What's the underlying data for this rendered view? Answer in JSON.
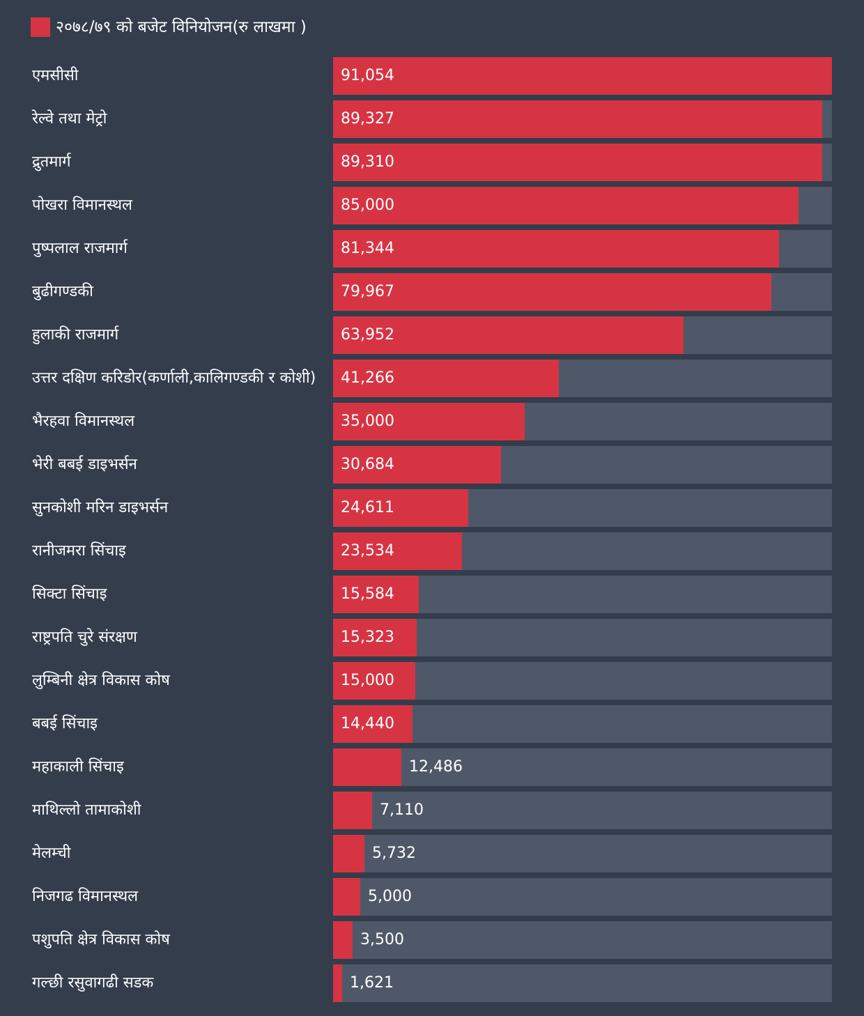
{
  "chart_data": {
    "type": "bar",
    "orientation": "horizontal",
    "legend_placement": "top-left",
    "colors": {
      "background": "#333d4c",
      "track": "#4f5868",
      "bar": "#d63443",
      "text": "#ffffff"
    },
    "xlim": [
      0,
      91054
    ],
    "grid": false,
    "series": [
      {
        "name": "२०७८/७९ को बजेट विनियोजन(रु लाखमा )",
        "values": [
          91054,
          89327,
          89310,
          85000,
          81344,
          79967,
          63952,
          41266,
          35000,
          30684,
          24611,
          23534,
          15584,
          15323,
          15000,
          14440,
          12486,
          7110,
          5732,
          5000,
          3500,
          1621
        ]
      }
    ],
    "categories": [
      "एमसीसी",
      "रेल्वे तथा मेट्रो",
      "द्रुतमार्ग",
      "पोखरा विमानस्थल",
      "पुष्पलाल राजमार्ग",
      "बुढीगण्डकी",
      "हुलाकी राजमार्ग",
      "उत्तर दक्षिण करिडोर(कर्णाली,कालिगण्डकी र कोशी)",
      "भैरहवा विमानस्थल",
      "भेरी बबई डाइभर्सन",
      "सुनकोशी मरिन डाइभर्सन",
      "रानीजमरा सिंचाइ",
      "सिक्टा सिंचाइ",
      "राष्ट्रपति चुरे संरक्षण",
      "लुम्बिनी क्षेत्र विकास कोष",
      "बबई सिंचाइ",
      "महाकाली सिंचाइ",
      "माथिल्लो तामाकोशी",
      "मेलम्ची",
      "निजगढ विमानस्थल",
      "पशुपति क्षेत्र विकास कोष",
      "गल्छी रसुवागढी सडक"
    ],
    "value_labels": [
      "91,054",
      "89,327",
      "89,310",
      "85,000",
      "81,344",
      "79,967",
      "63,952",
      "41,266",
      "35,000",
      "30,684",
      "24,611",
      "23,534",
      "15,584",
      "15,323",
      "15,000",
      "14,440",
      "12,486",
      "7,110",
      "5,732",
      "5,000",
      "3,500",
      "1,621"
    ]
  }
}
